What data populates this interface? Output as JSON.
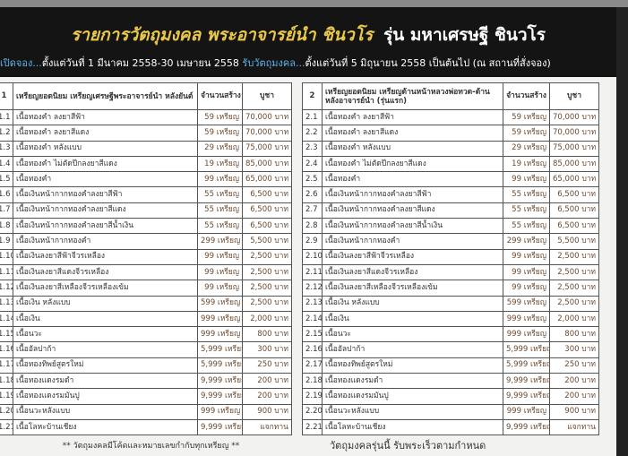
{
  "header": {
    "title_yellow": "รายการวัตถุมงคล พระอาจารย์นำ ชินวโร",
    "title_white": "รุ่น มหาเศรษฐี ชินวโร",
    "sub_a": "เปิดจอง...",
    "sub_b": "ตั้งแต่วันที่ 1 มีนาคม 2558-30 เมษายน 2558 ",
    "sub_c": "รับวัตถุมงคล...",
    "sub_d": "ตั้งแต่วันที่ 5 มิถุนายน 2558 เป็นต้นไป (ณ สถานที่สั่งจอง)"
  },
  "left_table": {
    "num": "1",
    "heading": "เหรียญยอดนิยม เหรียญเศรษฐีพระอาจารย์นำ หลังยันต์",
    "qty_header": "จำนวนสร้าง",
    "price_header": "บูชา",
    "rows": [
      [
        "1.1",
        "เนื้อทองคำ ลงยาสีฟ้า",
        "59 เหรียญ",
        "70,000 บาท"
      ],
      [
        "1.2",
        "เนื้อทองคำ ลงยาสีแดง",
        "59 เหรียญ",
        "70,000 บาท"
      ],
      [
        "1.3",
        "เนื้อทองคำ หลังแบบ",
        "29 เหรียญ",
        "75,000 บาท"
      ],
      [
        "1.4",
        "เนื้อทองคำ ไม่ตัดปีกลงยาสีแดง",
        "19 เหรียญ",
        "85,000 บาท"
      ],
      [
        "1.5",
        "เนื้อทองคำ",
        "99 เหรียญ",
        "65,000 บาท"
      ],
      [
        "1.6",
        "เนื้อเงินหน้ากากทองคำลงยาสีฟ้า",
        "55 เหรียญ",
        "6,500 บาท"
      ],
      [
        "1.7",
        "เนื้อเงินหน้ากากทองคำลงยาสีแดง",
        "55 เหรียญ",
        "6,500 บาท"
      ],
      [
        "1.8",
        "เนื้อเงินหน้ากากทองคำลงยาสีน้ำเงิน",
        "55 เหรียญ",
        "6,500 บาท"
      ],
      [
        "1.9",
        "เนื้อเงินหน้ากากทองคำ",
        "299 เหรียญ",
        "5,500 บาท"
      ],
      [
        "1.10",
        "เนื้อเงินลงยาสีฟ้าจีวรเหลือง",
        "99 เหรียญ",
        "2,500 บาท"
      ],
      [
        "1.11",
        "เนื้อเงินลงยาสีแดงจีวรเหลือง",
        "99 เหรียญ",
        "2,500 บาท"
      ],
      [
        "1.12",
        "เนื้อเงินลงยาสีเหลืองจีวรเหลืองเข้ม",
        "99 เหรียญ",
        "2,500 บาท"
      ],
      [
        "1.13",
        "เนื้อเงิน หลังแบบ",
        "599 เหรียญ",
        "2,500 บาท"
      ],
      [
        "1.14",
        "เนื้อเงิน",
        "999 เหรียญ",
        "2,000 บาท"
      ],
      [
        "1.15",
        "เนื้อนวะ",
        "999 เหรียญ",
        "800 บาท"
      ],
      [
        "1.16",
        "เนื้ออัลปาก้า",
        "5,999 เหรียญ",
        "300 บาท"
      ],
      [
        "1.17",
        "เนื้อทองทิพย์สูตรใหม่",
        "5,999 เหรียญ",
        "250 บาท"
      ],
      [
        "1.18",
        "เนื้อทองแดงรมดำ",
        "9,999 เหรียญ",
        "200 บาท"
      ],
      [
        "1.19",
        "เนื้อทองแดงรมมันปู",
        "9,999 เหรียญ",
        "200 บาท"
      ],
      [
        "1.20",
        "เนื้อนวะหลังแบบ",
        "999 เหรียญ",
        "900 บาท"
      ],
      [
        "1.21",
        "เนื้อโลหะบ้านเชียง",
        "9,999 เหรียญ",
        "แจกทาน"
      ]
    ]
  },
  "right_table": {
    "num": "2",
    "heading": "เหรียญยอดนิยม เหรียญด้านหน้าหลวงพ่อทวด-ด้านหลังอาจารย์นำ (รุ่นแรก)",
    "qty_header": "จำนวนสร้าง",
    "price_header": "บูชา",
    "rows": [
      [
        "2.1",
        "เนื้อทองคำ ลงยาสีฟ้า",
        "59 เหรียญ",
        "70,000 บาท"
      ],
      [
        "2.2",
        "เนื้อทองคำ ลงยาสีแดง",
        "59 เหรียญ",
        "70,000 บาท"
      ],
      [
        "2.3",
        "เนื้อทองคำ หลังแบบ",
        "29 เหรียญ",
        "75,000 บาท"
      ],
      [
        "2.4",
        "เนื้อทองคำ ไม่ตัดปีกลงยาสีแดง",
        "19 เหรียญ",
        "85,000 บาท"
      ],
      [
        "2.5",
        "เนื้อทองคำ",
        "99 เหรียญ",
        "65,000 บาท"
      ],
      [
        "2.6",
        "เนื้อเงินหน้ากากทองคำลงยาสีฟ้า",
        "55 เหรียญ",
        "6,500 บาท"
      ],
      [
        "2.7",
        "เนื้อเงินหน้ากากทองคำลงยาสีแดง",
        "55 เหรียญ",
        "6,500 บาท"
      ],
      [
        "2.8",
        "เนื้อเงินหน้ากากทองคำลงยาสีน้ำเงิน",
        "55 เหรียญ",
        "6,500 บาท"
      ],
      [
        "2.9",
        "เนื้อเงินหน้ากากทองคำ",
        "299 เหรียญ",
        "5,500 บาท"
      ],
      [
        "2.10",
        "เนื้อเงินลงยาสีฟ้าจีวรเหลือง",
        "99 เหรียญ",
        "2,500 บาท"
      ],
      [
        "2.11",
        "เนื้อเงินลงยาสีแดงจีวรเหลือง",
        "99 เหรียญ",
        "2,500 บาท"
      ],
      [
        "2.12",
        "เนื้อเงินลงยาสีเหลืองจีวรเหลืองเข้ม",
        "99 เหรียญ",
        "2,500 บาท"
      ],
      [
        "2.13",
        "เนื้อเงิน หลังแบบ",
        "599 เหรียญ",
        "2,500 บาท"
      ],
      [
        "2.14",
        "เนื้อเงิน",
        "999 เหรียญ",
        "2,000 บาท"
      ],
      [
        "2.15",
        "เนื้อนวะ",
        "999 เหรียญ",
        "800 บาท"
      ],
      [
        "2.16",
        "เนื้ออัลปาก้า",
        "5,999 เหรียญ",
        "300 บาท"
      ],
      [
        "2.17",
        "เนื้อทองทิพย์สูตรใหม่",
        "5,999 เหรียญ",
        "250 บาท"
      ],
      [
        "2.18",
        "เนื้อทองแดงรมดำ",
        "9,999 เหรียญ",
        "200 บาท"
      ],
      [
        "2.19",
        "เนื้อทองแดงรมมันปู",
        "9,999 เหรียญ",
        "200 บาท"
      ],
      [
        "2.20",
        "เนื้อนวะหลังแบบ",
        "999 เหรียญ",
        "900 บาท"
      ],
      [
        "2.21",
        "เนื้อโลหะบ้านเชียง",
        "9,999 เหรียญ",
        "แจกทาน"
      ]
    ]
  },
  "footer": {
    "left": "** วัตถุมงคลมีโค้ดและหมายเลขกำกับทุกเหรียญ **",
    "right": "วัตถุมงคลรุ่นนี้ รับพระเร็วตามกำหนด"
  }
}
